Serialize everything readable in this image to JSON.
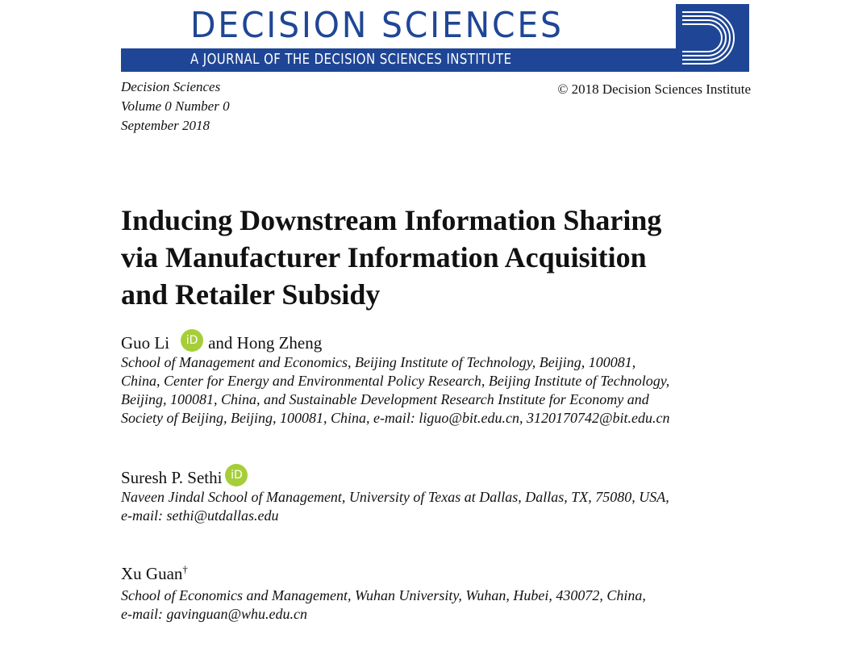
{
  "header": {
    "journal_name": "DECISION SCIENCES",
    "journal_subtitle": "A JOURNAL OF THE DECISION SCIENCES INSTITUTE",
    "brand_color": "#1f4696",
    "journal": "Decision Sciences",
    "volume": "Volume 0 Number 0",
    "date": "September 2018",
    "copyright": "© 2018 Decision Sciences Institute"
  },
  "title_lines": [
    "Inducing Downstream Information Sharing",
    "via Manufacturer Information Acquisition",
    "and Retailer Subsidy"
  ],
  "authors": [
    {
      "name": "Guo Li",
      "orcid_label": "iD",
      "conjunction": "and Hong Zheng",
      "affiliation_lines": [
        "School of Management and Economics, Beijing Institute of Technology, Beijing, 100081,",
        "China, Center for Energy and Environmental Policy Research, Beijing Institute of Technology,",
        "Beijing, 100081, China, and Sustainable Development Research Institute for Economy and",
        "Society of Beijing, Beijing, 100081, China, e-mail:  liguo@bit.edu.cn, 3120170742@bit.edu.cn"
      ]
    },
    {
      "name": "Suresh P. Sethi",
      "orcid_label": "iD",
      "affiliation_lines": [
        "Naveen Jindal School of Management, University of Texas at Dallas, Dallas, TX, 75080, USA,",
        "e-mail:  sethi@utdallas.edu"
      ]
    },
    {
      "name": "Xu Guan",
      "mark": "†",
      "affiliation_lines": [
        "School of Economics and Management, Wuhan University, Wuhan, Hubei, 430072, China,",
        "e-mail:  gavinguan@whu.edu.cn"
      ]
    }
  ],
  "orcid_color": "#a6ce39"
}
